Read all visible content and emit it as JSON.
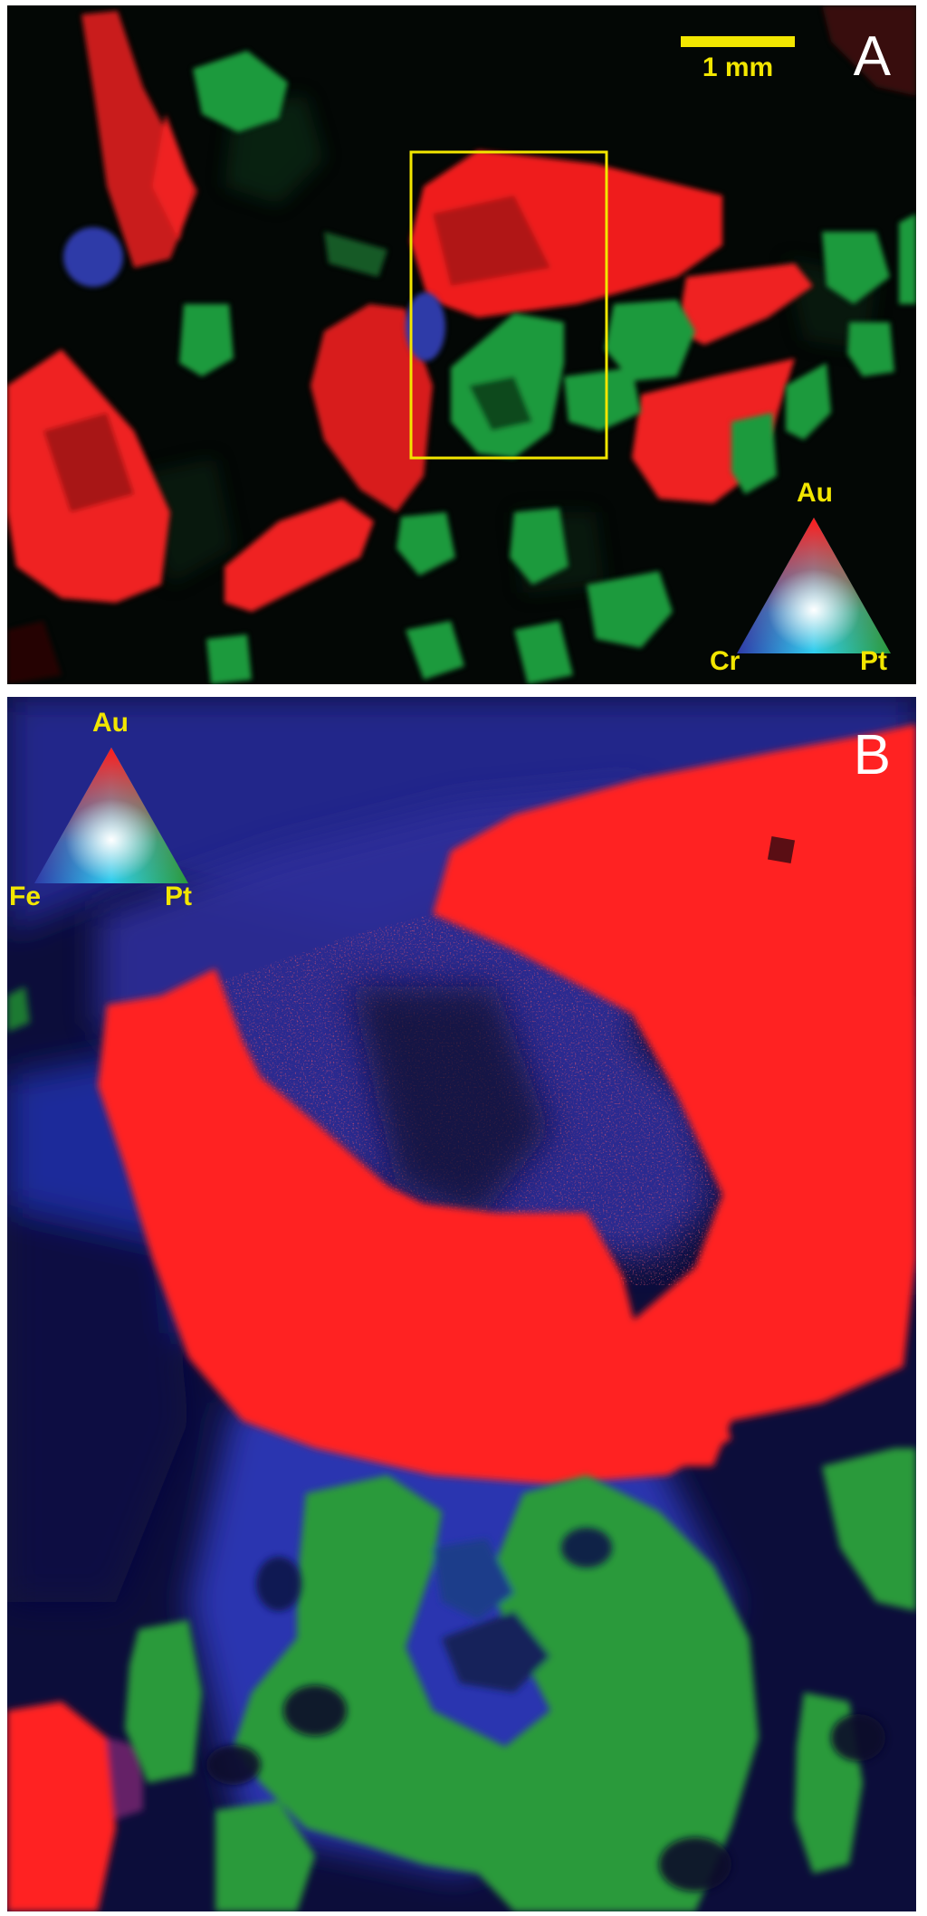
{
  "panel_a": {
    "letter": "A",
    "scale_bar_label": "1 mm",
    "legend": {
      "top": "Au",
      "left": "Cr",
      "right": "Pt"
    },
    "colors": {
      "background": "#030705",
      "gold": "#f01d1d",
      "platinum": "#1f9a3e",
      "chromium": "#2d3aa8",
      "selection_box": "#f2e600"
    }
  },
  "panel_b": {
    "letter": "B",
    "legend": {
      "top": "Au",
      "left": "Fe",
      "right": "Pt"
    },
    "colors": {
      "background": "#0c0d3a",
      "gold": "#ff2121",
      "platinum": "#2a9a3a",
      "iron": "#2a3bb0"
    }
  },
  "label_color": "#f2e600"
}
